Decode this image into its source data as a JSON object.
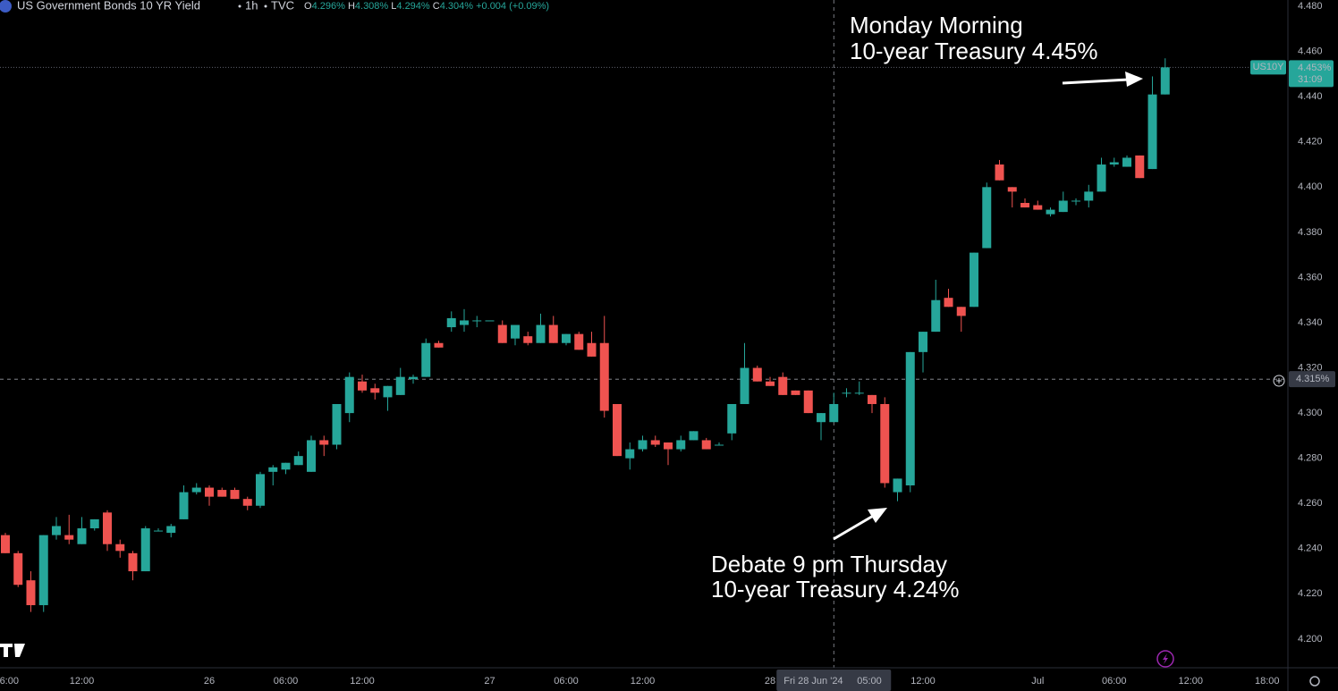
{
  "header": {
    "title": "US Government Bonds 10 YR Yield",
    "interval": "1h",
    "source": "TVC",
    "ohlc": [
      {
        "letter": "O",
        "value": "4.296%"
      },
      {
        "letter": "H",
        "value": "4.308%"
      },
      {
        "letter": "L",
        "value": "4.294%"
      },
      {
        "letter": "C",
        "value": "4.304%"
      }
    ],
    "change": "+0.004 (+0.09%)"
  },
  "chart_data": {
    "type": "candlestick",
    "symbol": "US10Y",
    "open": [
      4.246,
      4.238,
      4.226,
      4.215,
      4.246,
      4.246,
      4.242,
      4.249,
      4.256,
      4.242,
      4.238,
      4.23,
      4.248,
      4.247,
      4.253,
      4.265,
      4.267,
      4.266,
      4.266,
      4.262,
      4.259,
      4.274,
      4.275,
      4.277,
      4.274,
      4.288,
      4.286,
      4.3,
      4.314,
      4.311,
      4.307,
      4.308,
      4.315,
      4.316,
      4.331,
      4.338,
      4.339,
      4.341,
      4.341,
      4.339,
      4.333,
      4.334,
      4.331,
      4.339,
      4.331,
      4.335,
      4.331,
      4.331,
      4.304,
      4.28,
      4.284,
      4.288,
      4.287,
      4.284,
      4.288,
      4.288,
      4.286,
      4.291,
      4.304,
      4.32,
      4.314,
      4.316,
      4.31,
      4.31,
      4.296,
      4.296,
      4.309,
      4.309,
      4.308,
      4.304,
      4.265,
      4.268,
      4.327,
      4.336,
      4.351,
      4.347,
      4.347,
      4.373,
      4.41,
      4.4,
      4.393,
      4.392,
      4.388,
      4.389,
      4.394,
      4.394,
      4.398,
      4.41,
      4.409,
      4.414,
      4.408,
      4.441
    ],
    "high": [
      4.247,
      4.239,
      4.23,
      4.246,
      4.254,
      4.255,
      4.254,
      4.253,
      4.257,
      4.244,
      4.239,
      4.25,
      4.249,
      4.251,
      4.268,
      4.269,
      4.268,
      4.267,
      4.267,
      4.263,
      4.274,
      4.277,
      4.278,
      4.283,
      4.29,
      4.29,
      4.304,
      4.318,
      4.317,
      4.313,
      4.312,
      4.32,
      4.317,
      4.333,
      4.332,
      4.345,
      4.346,
      4.343,
      4.341,
      4.341,
      4.339,
      4.336,
      4.344,
      4.343,
      4.335,
      4.336,
      4.336,
      4.343,
      4.304,
      4.287,
      4.29,
      4.29,
      4.287,
      4.29,
      4.292,
      4.289,
      4.287,
      4.304,
      4.331,
      4.321,
      4.316,
      4.318,
      4.31,
      4.31,
      4.3,
      4.309,
      4.311,
      4.314,
      4.308,
      4.307,
      4.271,
      4.327,
      4.336,
      4.359,
      4.355,
      4.347,
      4.371,
      4.402,
      4.412,
      4.4,
      4.395,
      4.394,
      4.391,
      4.398,
      4.395,
      4.401,
      4.413,
      4.413,
      4.414,
      4.414,
      4.449,
      4.457
    ],
    "low": [
      4.238,
      4.223,
      4.212,
      4.212,
      4.244,
      4.242,
      4.242,
      4.248,
      4.239,
      4.236,
      4.226,
      4.23,
      4.248,
      4.245,
      4.253,
      4.264,
      4.259,
      4.263,
      4.262,
      4.257,
      4.258,
      4.268,
      4.273,
      4.277,
      4.274,
      4.281,
      4.284,
      4.296,
      4.309,
      4.306,
      4.301,
      4.308,
      4.313,
      4.316,
      4.329,
      4.336,
      4.336,
      4.338,
      4.341,
      4.331,
      4.33,
      4.33,
      4.331,
      4.331,
      4.33,
      4.328,
      4.325,
      4.298,
      4.281,
      4.275,
      4.283,
      4.285,
      4.277,
      4.283,
      4.288,
      4.284,
      4.286,
      4.288,
      4.304,
      4.314,
      4.312,
      4.308,
      4.308,
      4.3,
      4.288,
      4.296,
      4.307,
      4.308,
      4.3,
      4.267,
      4.261,
      4.265,
      4.318,
      4.336,
      4.347,
      4.336,
      4.347,
      4.373,
      4.403,
      4.391,
      4.391,
      4.39,
      4.387,
      4.389,
      4.392,
      4.391,
      4.398,
      4.409,
      4.409,
      4.404,
      4.408,
      4.441
    ],
    "close": [
      4.238,
      4.224,
      4.215,
      4.246,
      4.25,
      4.244,
      4.249,
      4.253,
      4.242,
      4.239,
      4.23,
      4.249,
      4.248,
      4.25,
      4.265,
      4.267,
      4.263,
      4.263,
      4.262,
      4.259,
      4.273,
      4.276,
      4.278,
      4.281,
      4.288,
      4.286,
      4.304,
      4.316,
      4.31,
      4.309,
      4.312,
      4.316,
      4.316,
      4.331,
      4.329,
      4.342,
      4.341,
      4.341,
      4.341,
      4.331,
      4.339,
      4.331,
      4.339,
      4.331,
      4.335,
      4.328,
      4.325,
      4.301,
      4.281,
      4.284,
      4.288,
      4.286,
      4.284,
      4.288,
      4.292,
      4.284,
      4.286,
      4.304,
      4.32,
      4.314,
      4.312,
      4.308,
      4.308,
      4.3,
      4.3,
      4.304,
      4.309,
      4.309,
      4.304,
      4.269,
      4.271,
      4.327,
      4.336,
      4.35,
      4.347,
      4.343,
      4.371,
      4.4,
      4.403,
      4.398,
      4.391,
      4.39,
      4.39,
      4.394,
      4.394,
      4.398,
      4.41,
      4.411,
      4.413,
      4.404,
      4.441,
      4.453
    ],
    "up_color": "#26a69a",
    "down_color": "#ef5350",
    "xlim": [
      -0.42,
      100.63
    ],
    "xticks": [
      {
        "value": 0.3,
        "label": "6:00"
      },
      {
        "value": 6,
        "label": "12:00"
      },
      {
        "value": 16,
        "label": "26"
      },
      {
        "value": 22,
        "label": "06:00"
      },
      {
        "value": 28,
        "label": "12:00"
      },
      {
        "value": 38,
        "label": "27"
      },
      {
        "value": 44,
        "label": "06:00"
      },
      {
        "value": 50,
        "label": "12:00"
      },
      {
        "value": 60,
        "label": "28"
      },
      {
        "value": 72,
        "label": "12:00"
      },
      {
        "value": 81,
        "label": "Jul"
      },
      {
        "value": 87,
        "label": "06:00"
      },
      {
        "value": 93,
        "label": "12:00"
      },
      {
        "value": 99,
        "label": "18:00"
      }
    ],
    "ylim": [
      4.1873,
      4.4828
    ],
    "yticks": [
      {
        "value": 4.48,
        "label": "4.480"
      },
      {
        "value": 4.46,
        "label": "4.460"
      },
      {
        "value": 4.44,
        "label": "4.440"
      },
      {
        "value": 4.42,
        "label": "4.420"
      },
      {
        "value": 4.4,
        "label": "4.400"
      },
      {
        "value": 4.38,
        "label": "4.380"
      },
      {
        "value": 4.36,
        "label": "4.360"
      },
      {
        "value": 4.34,
        "label": "4.340"
      },
      {
        "value": 4.32,
        "label": "4.320"
      },
      {
        "value": 4.3,
        "label": "4.300"
      },
      {
        "value": 4.28,
        "label": "4.280"
      },
      {
        "value": 4.26,
        "label": "4.260"
      },
      {
        "value": 4.24,
        "label": "4.240"
      },
      {
        "value": 4.22,
        "label": "4.220"
      },
      {
        "value": 4.2,
        "label": "4.200"
      }
    ],
    "grid": false,
    "last_price": {
      "value": 4.453,
      "label": "4.453%"
    },
    "countdown": "31:09",
    "crosshair": {
      "x": 65,
      "date_label": "Fri 28 Jun '24",
      "time_label": "05:00",
      "y": {
        "value": 4.315,
        "label": "4.315%"
      }
    },
    "annotations": [
      {
        "lines": [
          "Monday Morning",
          "10-year Treasury 4.45%"
        ]
      },
      {
        "lines": [
          "Debate 9 pm Thursday",
          "10-year Treasury 4.24%"
        ]
      }
    ]
  }
}
